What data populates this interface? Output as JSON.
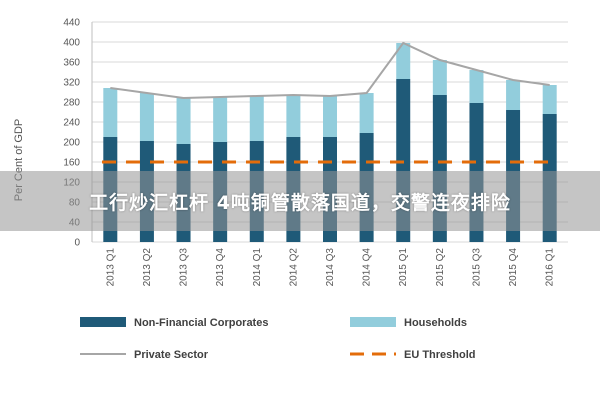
{
  "chart_data": {
    "type": "bar",
    "stacked": true,
    "ylabel": "Per Cent of GDP",
    "ylim": [
      0,
      440
    ],
    "yticks": [
      0,
      40,
      80,
      120,
      160,
      200,
      240,
      280,
      320,
      360,
      400,
      440
    ],
    "grid": true,
    "legend_position": "bottom",
    "categories": [
      "2013 Q1",
      "2013 Q2",
      "2013 Q3",
      "2013 Q4",
      "2014 Q1",
      "2014 Q2",
      "2014 Q3",
      "2014 Q4",
      "2015 Q1",
      "2015 Q2",
      "2015 Q3",
      "2015 Q4",
      "2016 Q1"
    ],
    "series": [
      {
        "name": "Non-Financial Corporates",
        "kind": "bar",
        "color": "#1f5a78",
        "values": [
          210,
          202,
          196,
          200,
          202,
          210,
          210,
          218,
          326,
          294,
          278,
          264,
          256
        ]
      },
      {
        "name": "Households",
        "kind": "bar",
        "color": "#92cddc",
        "values": [
          98,
          96,
          92,
          90,
          90,
          84,
          82,
          80,
          72,
          70,
          66,
          60,
          58
        ]
      },
      {
        "name": "Private Sector",
        "kind": "line",
        "color": "#a6a6a6",
        "values": [
          308,
          298,
          288,
          290,
          292,
          294,
          292,
          298,
          398,
          364,
          344,
          324,
          314
        ]
      },
      {
        "name": "EU Threshold",
        "kind": "dashed-line",
        "color": "#e36c0a",
        "values": [
          160,
          160,
          160,
          160,
          160,
          160,
          160,
          160,
          160,
          160,
          160,
          160,
          160
        ]
      }
    ]
  },
  "overlay": {
    "banner_text": "工行炒汇杠杆 4吨铜管散落国道，交警连夜排险"
  }
}
